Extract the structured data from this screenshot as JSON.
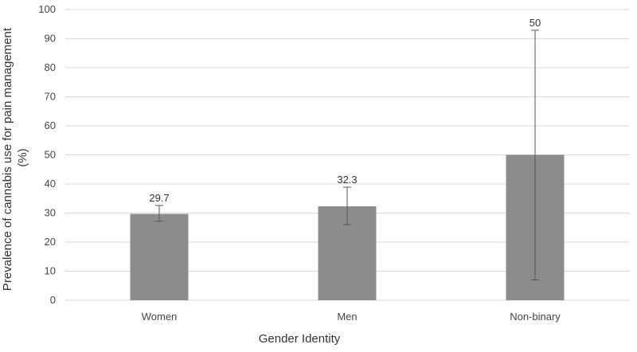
{
  "chart_data": {
    "type": "bar",
    "categories": [
      "Women",
      "Men",
      "Non-binary"
    ],
    "values": [
      29.7,
      32.3,
      50
    ],
    "data_labels": [
      "29.7",
      "32.3",
      "50"
    ],
    "error_bars": [
      {
        "low": 27.2,
        "high": 32.6
      },
      {
        "low": 26.0,
        "high": 38.9
      },
      {
        "low": 7.0,
        "high": 92.9
      }
    ],
    "xlabel": "Gender Identity",
    "ylabel_lines": [
      "Prevalence of cannabis use for pain management",
      "(%)"
    ],
    "ylim": [
      0,
      100
    ],
    "yticks": [
      0,
      10,
      20,
      30,
      40,
      50,
      60,
      70,
      80,
      90,
      100
    ],
    "grid": true,
    "legend": "none",
    "bar_color": "#8c8c8c",
    "gridline_color": "#d9d9d9",
    "error_bar_color": "#555555"
  }
}
